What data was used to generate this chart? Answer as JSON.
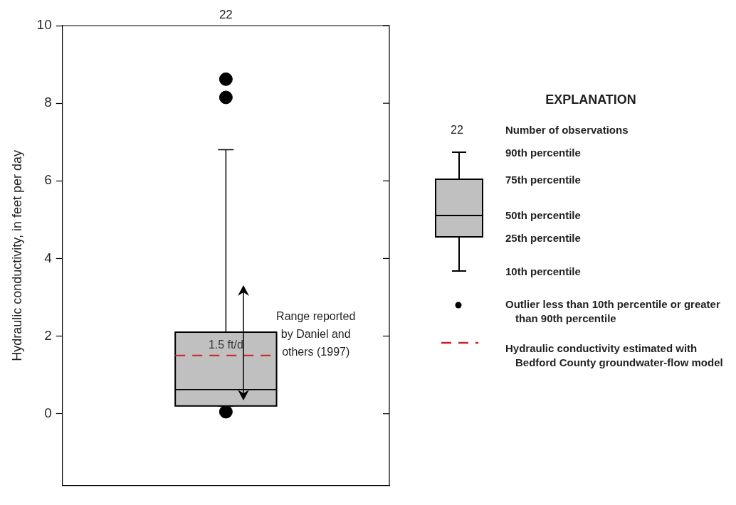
{
  "chart_data": {
    "type": "box",
    "categories": [
      null
    ],
    "boxes": [
      {
        "low": 0.2,
        "q1": 0.2,
        "median": 0.62,
        "q3": 2.1,
        "high": 6.8,
        "outliers": [
          8.62,
          8.15,
          0.05
        ]
      }
    ],
    "color": "#c0c0c0",
    "ylabel": "Hydraulic conductivity, in feet per day",
    "ylim": [
      -1.85,
      10
    ],
    "yticks": [
      0,
      2,
      4,
      6,
      8,
      10
    ],
    "grid": false,
    "ref_lines": [
      {
        "axis": "y",
        "value": 1.5,
        "label": "1.5 ft/d",
        "color": "#cc2229",
        "line_style": "dashed"
      }
    ],
    "legend": "right",
    "legend_title": "EXPLANATION",
    "annotations": [
      "Range reported by Daniel and others (1997)",
      "22",
      "22",
      "Number of observations",
      "90th percentile",
      "75th percentile",
      "50th percentile",
      "25th percentile",
      "10th percentile",
      "Outlier less than 10th percentile or greater than 90th percentile",
      "Hydraulic conductivity estimated with Bedford County groundwater-flow model"
    ]
  }
}
